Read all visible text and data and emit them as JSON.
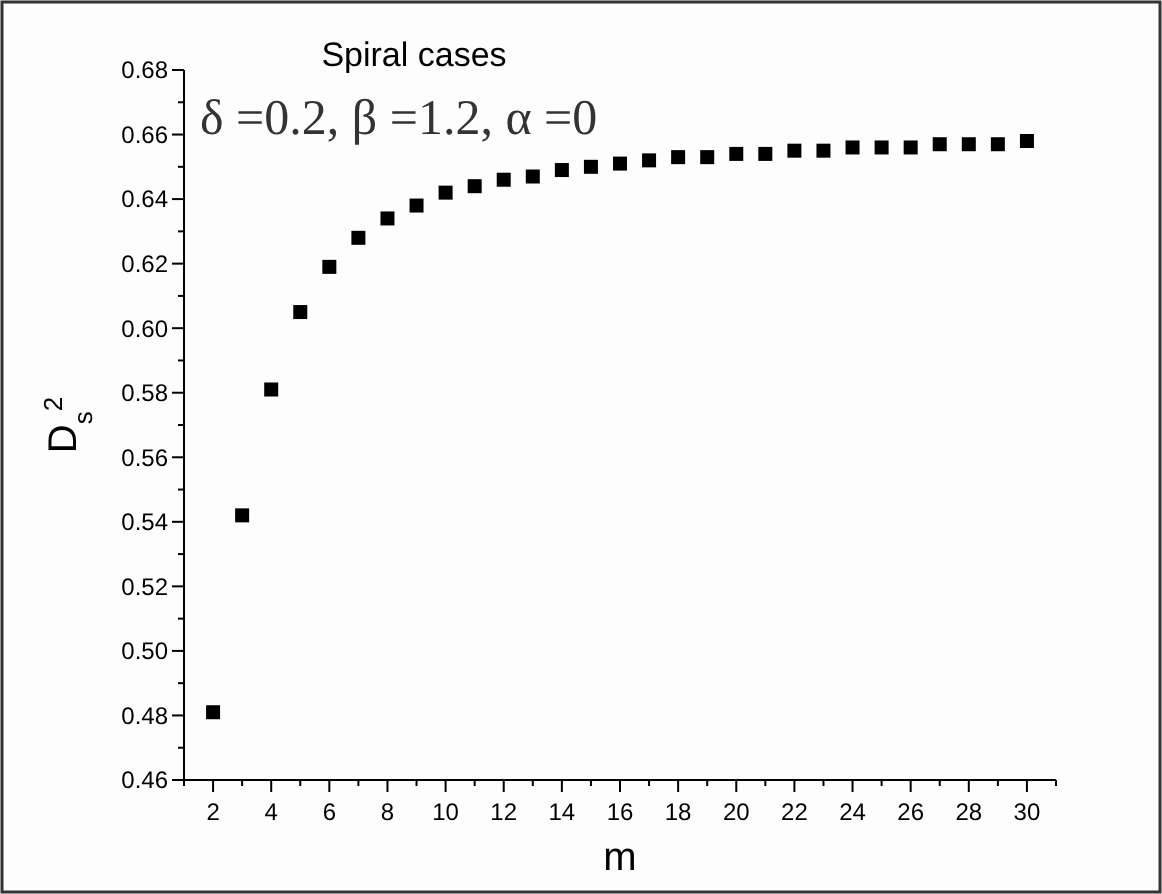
{
  "chart_data": {
    "type": "scatter",
    "title": "Spiral cases",
    "subtitle": "δ =0.2, β =1.2, α =0",
    "xlabel": "m",
    "ylabel": "D$_{s}$$^{2}$",
    "x": [
      2,
      3,
      4,
      5,
      6,
      7,
      8,
      9,
      10,
      11,
      12,
      13,
      14,
      15,
      16,
      17,
      18,
      19,
      20,
      21,
      22,
      23,
      24,
      25,
      26,
      27,
      28,
      29,
      30
    ],
    "series": [
      {
        "color": "#000000",
        "values": [
          0.481,
          0.542,
          0.581,
          0.605,
          0.619,
          0.628,
          0.634,
          0.638,
          0.642,
          0.644,
          0.646,
          0.647,
          0.649,
          0.65,
          0.651,
          0.652,
          0.653,
          0.653,
          0.654,
          0.654,
          0.655,
          0.655,
          0.656,
          0.656,
          0.656,
          0.657,
          0.657,
          0.657,
          0.658
        ]
      }
    ],
    "marker": "square",
    "xlim": [
      1,
      31
    ],
    "xticks": [
      {
        "value": 1,
        "label": null
      },
      2,
      {
        "value": 3,
        "label": null
      },
      4,
      {
        "value": 5,
        "label": null
      },
      6,
      {
        "value": 7,
        "label": null
      },
      8,
      {
        "value": 9,
        "label": null
      },
      10,
      {
        "value": 11,
        "label": null
      },
      12,
      {
        "value": 13,
        "label": null
      },
      14,
      {
        "value": 15,
        "label": null
      },
      16,
      {
        "value": 17,
        "label": null
      },
      18,
      {
        "value": 19,
        "label": null
      },
      20,
      {
        "value": 21,
        "label": null
      },
      22,
      {
        "value": 23,
        "label": null
      },
      24,
      {
        "value": 25,
        "label": null
      },
      26,
      {
        "value": 27,
        "label": null
      },
      28,
      {
        "value": 29,
        "label": null
      },
      30,
      {
        "value": 31,
        "label": null
      }
    ],
    "ylim": [
      0.46,
      0.68
    ],
    "yticks": [
      {
        "value": 0.46,
        "label": "0.46"
      },
      {
        "value": 0.47,
        "label": null
      },
      {
        "value": 0.48,
        "label": "0.48"
      },
      {
        "value": 0.49,
        "label": null
      },
      {
        "value": 0.5,
        "label": "0.50"
      },
      {
        "value": 0.51,
        "label": null
      },
      {
        "value": 0.52,
        "label": "0.52"
      },
      {
        "value": 0.53,
        "label": null
      },
      {
        "value": 0.54,
        "label": "0.54"
      },
      {
        "value": 0.55,
        "label": null
      },
      {
        "value": 0.56,
        "label": "0.56"
      },
      {
        "value": 0.57,
        "label": null
      },
      {
        "value": 0.58,
        "label": "0.58"
      },
      {
        "value": 0.59,
        "label": null
      },
      {
        "value": 0.6,
        "label": "0.60"
      },
      {
        "value": 0.61,
        "label": null
      },
      {
        "value": 0.62,
        "label": "0.62"
      },
      {
        "value": 0.63,
        "label": null
      },
      {
        "value": 0.64,
        "label": "0.64"
      },
      {
        "value": 0.65,
        "label": null
      },
      {
        "value": 0.66,
        "label": "0.66"
      },
      {
        "value": 0.67,
        "label": null
      },
      {
        "value": 0.68,
        "label": "0.68"
      }
    ]
  }
}
